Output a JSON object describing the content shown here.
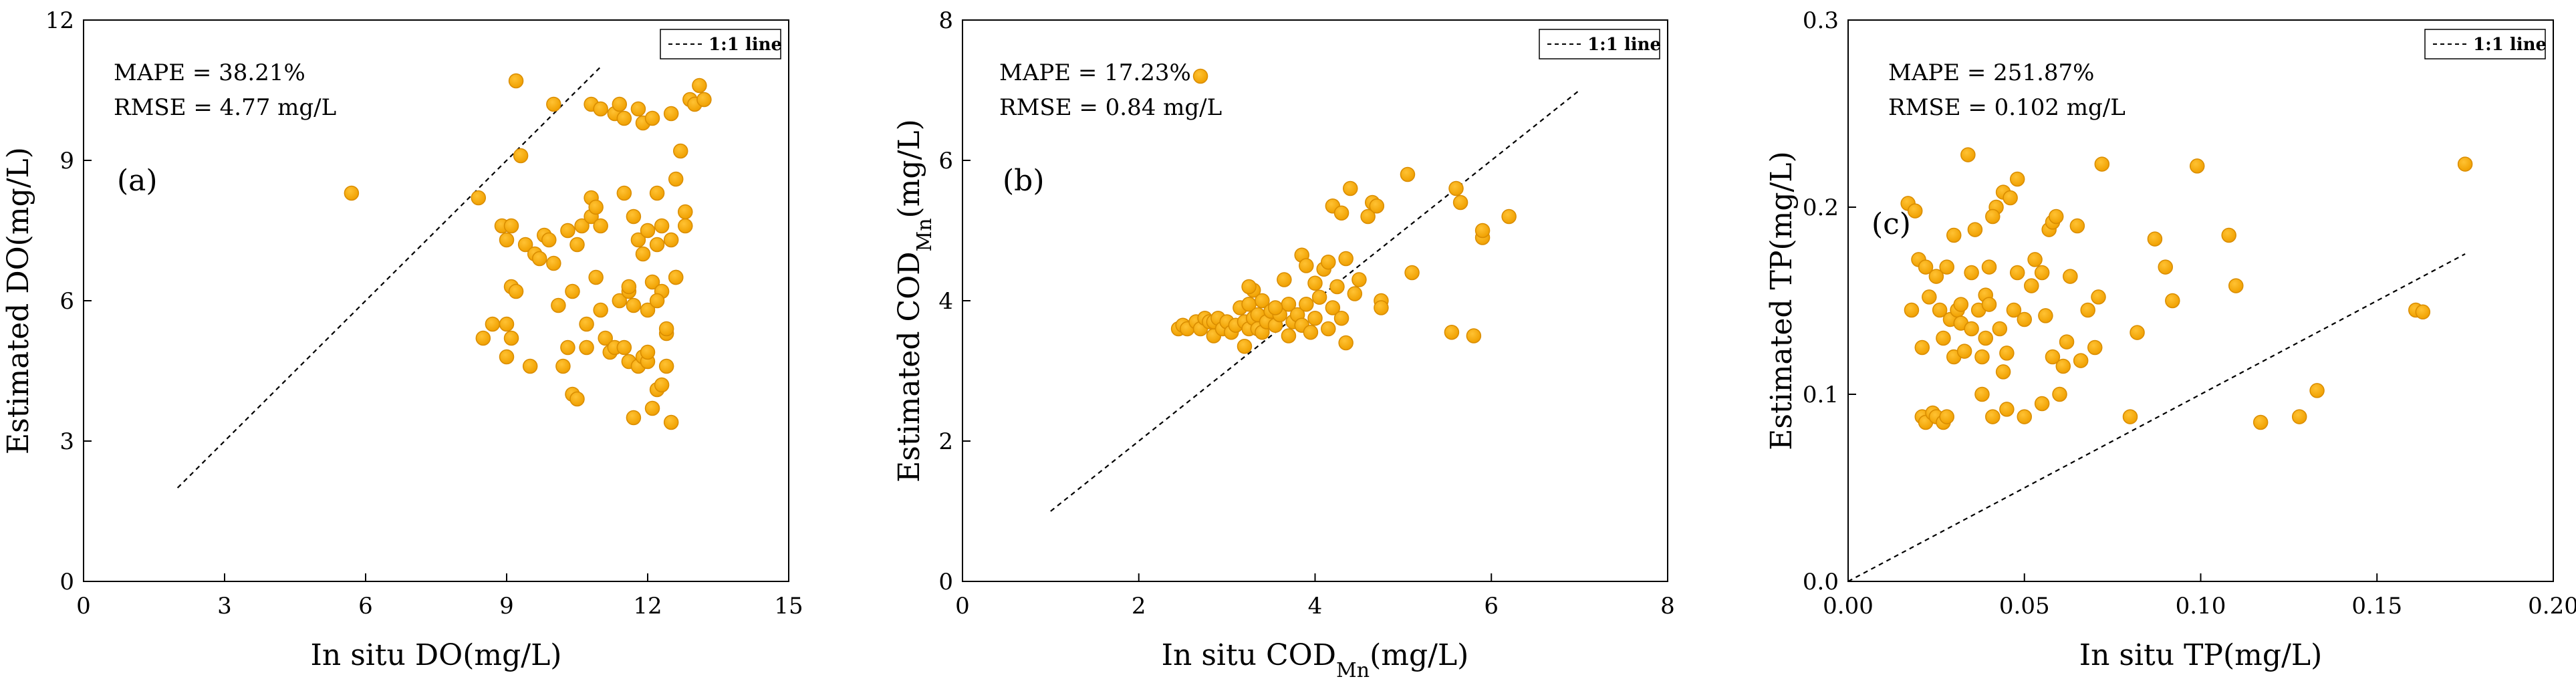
{
  "chart_data": [
    {
      "type": "scatter",
      "panel_label": "(a)",
      "stats": [
        "MAPE = 38.21%",
        "RMSE = 4.77 mg/L"
      ],
      "legend": "1:1 line",
      "xlabel": {
        "main": "In situ DO(mg/L)"
      },
      "ylabel": {
        "main": "Estimated DO(mg/L)"
      },
      "xlim": [
        0,
        15
      ],
      "ylim": [
        0,
        12
      ],
      "xticks": [
        "0",
        "3",
        "6",
        "9",
        "12",
        "15"
      ],
      "yticks": [
        "0",
        "3",
        "6",
        "9",
        "12"
      ],
      "one_to_one": [
        2,
        11
      ],
      "points": [
        [
          5.7,
          8.3
        ],
        [
          8.4,
          8.2
        ],
        [
          8.5,
          5.2
        ],
        [
          8.7,
          5.5
        ],
        [
          8.9,
          7.6
        ],
        [
          9.0,
          7.3
        ],
        [
          9.1,
          7.6
        ],
        [
          9.2,
          10.7
        ],
        [
          9.1,
          6.3
        ],
        [
          9.2,
          6.2
        ],
        [
          9.0,
          5.5
        ],
        [
          9.1,
          5.2
        ],
        [
          9.0,
          4.8
        ],
        [
          9.3,
          9.1
        ],
        [
          9.4,
          7.2
        ],
        [
          9.5,
          4.6
        ],
        [
          9.6,
          7.0
        ],
        [
          9.7,
          6.9
        ],
        [
          9.8,
          7.4
        ],
        [
          9.9,
          7.3
        ],
        [
          10.0,
          6.8
        ],
        [
          10.0,
          10.2
        ],
        [
          10.1,
          5.9
        ],
        [
          10.2,
          4.6
        ],
        [
          10.3,
          5.0
        ],
        [
          10.3,
          7.5
        ],
        [
          10.4,
          6.2
        ],
        [
          10.4,
          4.0
        ],
        [
          10.5,
          3.9
        ],
        [
          10.5,
          7.2
        ],
        [
          10.6,
          7.6
        ],
        [
          10.7,
          5.0
        ],
        [
          10.7,
          5.5
        ],
        [
          10.8,
          8.2
        ],
        [
          10.8,
          7.8
        ],
        [
          10.8,
          10.2
        ],
        [
          10.9,
          8.0
        ],
        [
          10.9,
          6.5
        ],
        [
          11.0,
          7.6
        ],
        [
          11.0,
          5.8
        ],
        [
          11.1,
          5.2
        ],
        [
          11.2,
          4.9
        ],
        [
          11.3,
          10.0
        ],
        [
          11.3,
          5.0
        ],
        [
          11.4,
          10.2
        ],
        [
          11.4,
          6.0
        ],
        [
          11.5,
          5.0
        ],
        [
          11.5,
          8.3
        ],
        [
          11.5,
          9.9
        ],
        [
          11.6,
          6.2
        ],
        [
          11.6,
          6.3
        ],
        [
          11.6,
          4.7
        ],
        [
          11.7,
          3.5
        ],
        [
          11.7,
          7.8
        ],
        [
          11.7,
          5.9
        ],
        [
          11.8,
          7.3
        ],
        [
          11.8,
          4.6
        ],
        [
          11.8,
          10.1
        ],
        [
          11.9,
          9.8
        ],
        [
          11.9,
          7.0
        ],
        [
          11.9,
          4.8
        ],
        [
          12.0,
          7.5
        ],
        [
          12.0,
          5.8
        ],
        [
          12.0,
          4.7
        ],
        [
          12.0,
          4.9
        ],
        [
          12.1,
          6.4
        ],
        [
          12.1,
          9.9
        ],
        [
          12.1,
          3.7
        ],
        [
          12.2,
          8.3
        ],
        [
          12.2,
          7.2
        ],
        [
          12.2,
          4.1
        ],
        [
          12.3,
          6.2
        ],
        [
          12.3,
          7.6
        ],
        [
          12.3,
          4.2
        ],
        [
          12.4,
          5.3
        ],
        [
          12.4,
          5.4
        ],
        [
          12.4,
          4.6
        ],
        [
          12.5,
          10.0
        ],
        [
          12.5,
          7.3
        ],
        [
          12.5,
          3.4
        ],
        [
          12.6,
          6.5
        ],
        [
          12.6,
          8.6
        ],
        [
          12.7,
          9.2
        ],
        [
          12.8,
          7.6
        ],
        [
          12.8,
          7.9
        ],
        [
          12.9,
          10.3
        ],
        [
          13.0,
          10.2
        ],
        [
          13.1,
          10.6
        ],
        [
          13.2,
          10.3
        ],
        [
          12.6,
          6.5
        ],
        [
          12.2,
          6.0
        ],
        [
          11.0,
          10.1
        ]
      ]
    },
    {
      "type": "scatter",
      "panel_label": "(b)",
      "stats": [
        "MAPE = 17.23%",
        "RMSE = 0.84 mg/L"
      ],
      "legend": "1:1 line",
      "xlabel": {
        "main": "In situ COD",
        "sub": "Mn",
        "tail": "(mg/L)"
      },
      "ylabel": {
        "main": "Estimated COD",
        "sub": "Mn",
        "tail": "(mg/L)"
      },
      "xlim": [
        0,
        8
      ],
      "ylim": [
        0,
        8
      ],
      "xticks": [
        "0",
        "2",
        "4",
        "6",
        "8"
      ],
      "yticks": [
        "0",
        "2",
        "4",
        "6",
        "8"
      ],
      "one_to_one": [
        1,
        7
      ],
      "points": [
        [
          2.45,
          3.6
        ],
        [
          2.5,
          3.65
        ],
        [
          2.55,
          3.6
        ],
        [
          2.65,
          3.7
        ],
        [
          2.7,
          3.6
        ],
        [
          2.75,
          3.75
        ],
        [
          2.8,
          3.7
        ],
        [
          2.85,
          3.5
        ],
        [
          2.85,
          3.7
        ],
        [
          2.9,
          3.75
        ],
        [
          2.95,
          3.6
        ],
        [
          3.0,
          3.7
        ],
        [
          3.05,
          3.55
        ],
        [
          3.1,
          3.65
        ],
        [
          3.15,
          3.9
        ],
        [
          3.2,
          3.7
        ],
        [
          3.2,
          3.35
        ],
        [
          3.25,
          3.6
        ],
        [
          3.25,
          3.95
        ],
        [
          3.3,
          4.15
        ],
        [
          3.3,
          3.75
        ],
        [
          3.35,
          3.8
        ],
        [
          3.35,
          3.6
        ],
        [
          3.4,
          4.0
        ],
        [
          3.4,
          3.55
        ],
        [
          3.45,
          3.7
        ],
        [
          3.5,
          3.85
        ],
        [
          3.55,
          3.65
        ],
        [
          3.6,
          3.8
        ],
        [
          3.65,
          4.3
        ],
        [
          3.7,
          3.95
        ],
        [
          3.7,
          3.5
        ],
        [
          3.75,
          3.7
        ],
        [
          3.8,
          3.8
        ],
        [
          3.85,
          4.65
        ],
        [
          3.85,
          3.65
        ],
        [
          3.9,
          4.5
        ],
        [
          3.9,
          3.95
        ],
        [
          3.95,
          3.55
        ],
        [
          4.0,
          4.25
        ],
        [
          4.0,
          3.75
        ],
        [
          4.05,
          4.05
        ],
        [
          4.1,
          4.45
        ],
        [
          4.15,
          4.55
        ],
        [
          4.15,
          3.6
        ],
        [
          4.2,
          5.35
        ],
        [
          4.2,
          3.9
        ],
        [
          4.25,
          4.2
        ],
        [
          4.3,
          5.25
        ],
        [
          4.3,
          3.75
        ],
        [
          4.35,
          4.6
        ],
        [
          4.35,
          3.4
        ],
        [
          4.4,
          5.6
        ],
        [
          4.45,
          4.1
        ],
        [
          4.5,
          4.3
        ],
        [
          4.6,
          5.2
        ],
        [
          4.65,
          5.4
        ],
        [
          4.7,
          5.35
        ],
        [
          4.75,
          4.0
        ],
        [
          4.75,
          3.9
        ],
        [
          5.05,
          5.8
        ],
        [
          5.1,
          4.4
        ],
        [
          5.55,
          3.55
        ],
        [
          5.6,
          5.6
        ],
        [
          5.65,
          5.4
        ],
        [
          5.8,
          3.5
        ],
        [
          5.9,
          4.9
        ],
        [
          5.9,
          5.0
        ],
        [
          6.2,
          5.2
        ],
        [
          2.7,
          7.2
        ],
        [
          3.25,
          4.2
        ],
        [
          3.55,
          3.9
        ]
      ]
    },
    {
      "type": "scatter",
      "panel_label": "(c)",
      "stats": [
        "MAPE = 251.87%",
        "RMSE = 0.102 mg/L"
      ],
      "legend": "1:1 line",
      "xlabel": {
        "main": "In situ TP(mg/L)"
      },
      "ylabel": {
        "main": "Estimated TP(mg/L)"
      },
      "xlim": [
        0,
        0.2
      ],
      "ylim": [
        0,
        0.3
      ],
      "xticks": [
        "0.00",
        "0.05",
        "0.10",
        "0.15",
        "0.20"
      ],
      "yticks": [
        "0.0",
        "0.1",
        "0.2",
        "0.3"
      ],
      "one_to_one": [
        0,
        0.175
      ],
      "points": [
        [
          0.017,
          0.202
        ],
        [
          0.018,
          0.145
        ],
        [
          0.019,
          0.198
        ],
        [
          0.02,
          0.172
        ],
        [
          0.021,
          0.125
        ],
        [
          0.021,
          0.088
        ],
        [
          0.022,
          0.168
        ],
        [
          0.022,
          0.085
        ],
        [
          0.023,
          0.152
        ],
        [
          0.024,
          0.09
        ],
        [
          0.025,
          0.163
        ],
        [
          0.025,
          0.088
        ],
        [
          0.026,
          0.145
        ],
        [
          0.027,
          0.085
        ],
        [
          0.027,
          0.13
        ],
        [
          0.028,
          0.088
        ],
        [
          0.028,
          0.168
        ],
        [
          0.029,
          0.14
        ],
        [
          0.03,
          0.185
        ],
        [
          0.03,
          0.12
        ],
        [
          0.031,
          0.145
        ],
        [
          0.032,
          0.138
        ],
        [
          0.032,
          0.148
        ],
        [
          0.033,
          0.123
        ],
        [
          0.034,
          0.228
        ],
        [
          0.035,
          0.165
        ],
        [
          0.035,
          0.135
        ],
        [
          0.036,
          0.188
        ],
        [
          0.037,
          0.145
        ],
        [
          0.038,
          0.12
        ],
        [
          0.038,
          0.1
        ],
        [
          0.039,
          0.153
        ],
        [
          0.04,
          0.168
        ],
        [
          0.04,
          0.148
        ],
        [
          0.041,
          0.088
        ],
        [
          0.042,
          0.2
        ],
        [
          0.043,
          0.135
        ],
        [
          0.044,
          0.208
        ],
        [
          0.045,
          0.122
        ],
        [
          0.045,
          0.092
        ],
        [
          0.046,
          0.205
        ],
        [
          0.047,
          0.145
        ],
        [
          0.048,
          0.215
        ],
        [
          0.048,
          0.165
        ],
        [
          0.05,
          0.14
        ],
        [
          0.05,
          0.088
        ],
        [
          0.052,
          0.158
        ],
        [
          0.053,
          0.172
        ],
        [
          0.055,
          0.095
        ],
        [
          0.055,
          0.165
        ],
        [
          0.056,
          0.142
        ],
        [
          0.057,
          0.188
        ],
        [
          0.058,
          0.192
        ],
        [
          0.058,
          0.12
        ],
        [
          0.059,
          0.195
        ],
        [
          0.06,
          0.1
        ],
        [
          0.061,
          0.115
        ],
        [
          0.062,
          0.128
        ],
        [
          0.063,
          0.163
        ],
        [
          0.065,
          0.19
        ],
        [
          0.066,
          0.118
        ],
        [
          0.068,
          0.145
        ],
        [
          0.07,
          0.125
        ],
        [
          0.072,
          0.223
        ],
        [
          0.071,
          0.152
        ],
        [
          0.08,
          0.088
        ],
        [
          0.082,
          0.133
        ],
        [
          0.087,
          0.183
        ],
        [
          0.09,
          0.168
        ],
        [
          0.092,
          0.15
        ],
        [
          0.099,
          0.222
        ],
        [
          0.108,
          0.185
        ],
        [
          0.11,
          0.158
        ],
        [
          0.117,
          0.085
        ],
        [
          0.128,
          0.088
        ],
        [
          0.133,
          0.102
        ],
        [
          0.161,
          0.145
        ],
        [
          0.163,
          0.144
        ],
        [
          0.175,
          0.223
        ],
        [
          0.044,
          0.112
        ],
        [
          0.039,
          0.13
        ],
        [
          0.041,
          0.195
        ]
      ]
    }
  ]
}
